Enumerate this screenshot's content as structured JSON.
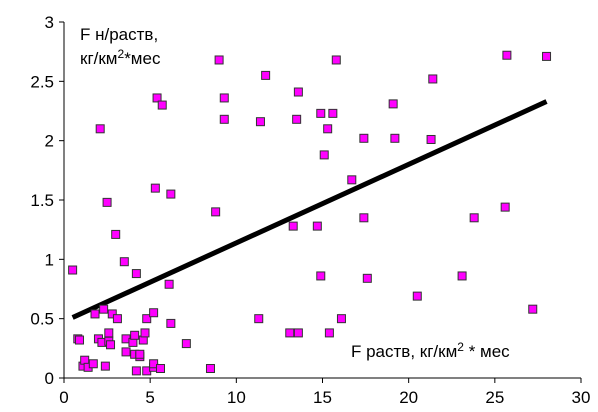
{
  "chart_data": {
    "type": "scatter",
    "title": "",
    "ylabel_line1": "F н/раств,",
    "ylabel_line2_prefix": "кг/км",
    "ylabel_line2_sup": "2",
    "ylabel_line2_suffix": "*мес",
    "xlabel_prefix": "F раств, кг/км",
    "xlabel_sup": "2",
    "xlabel_suffix": " * мес",
    "xlim": [
      0,
      30
    ],
    "ylim": [
      0,
      3
    ],
    "x_ticks": [
      "0",
      "5",
      "10",
      "15",
      "20",
      "25",
      "30"
    ],
    "y_ticks": [
      "0",
      "0.5",
      "1",
      "1.5",
      "2",
      "2.5",
      "3"
    ],
    "grid": false,
    "marker_color": "#ff00ff",
    "marker_edge": "#333333",
    "trendline": {
      "x": [
        0.5,
        28
      ],
      "y": [
        0.51,
        2.33
      ],
      "color": "#000000"
    },
    "points": [
      [
        0.5,
        0.91
      ],
      [
        0.8,
        0.33
      ],
      [
        0.9,
        0.32
      ],
      [
        1.1,
        0.1
      ],
      [
        1.2,
        0.15
      ],
      [
        1.4,
        0.09
      ],
      [
        1.7,
        0.12
      ],
      [
        1.8,
        0.54
      ],
      [
        2.0,
        0.33
      ],
      [
        2.1,
        2.1
      ],
      [
        2.2,
        0.3
      ],
      [
        2.3,
        0.58
      ],
      [
        2.4,
        0.1
      ],
      [
        2.5,
        1.48
      ],
      [
        2.6,
        0.38
      ],
      [
        2.6,
        0.31
      ],
      [
        2.7,
        0.28
      ],
      [
        2.8,
        0.54
      ],
      [
        3.0,
        1.21
      ],
      [
        3.1,
        0.5
      ],
      [
        3.5,
        0.98
      ],
      [
        3.6,
        0.22
      ],
      [
        3.6,
        0.33
      ],
      [
        4.0,
        0.3
      ],
      [
        4.1,
        0.2
      ],
      [
        4.1,
        0.36
      ],
      [
        4.2,
        0.88
      ],
      [
        4.2,
        0.06
      ],
      [
        4.4,
        0.18
      ],
      [
        4.4,
        0.2
      ],
      [
        4.6,
        0.32
      ],
      [
        4.7,
        0.38
      ],
      [
        4.8,
        0.06
      ],
      [
        4.8,
        0.5
      ],
      [
        5.2,
        0.55
      ],
      [
        5.2,
        0.09
      ],
      [
        5.2,
        0.12
      ],
      [
        5.3,
        1.6
      ],
      [
        5.4,
        2.36
      ],
      [
        5.6,
        0.08
      ],
      [
        5.7,
        2.3
      ],
      [
        6.1,
        0.79
      ],
      [
        6.2,
        1.55
      ],
      [
        6.2,
        0.46
      ],
      [
        7.1,
        0.29
      ],
      [
        8.5,
        0.08
      ],
      [
        8.8,
        1.4
      ],
      [
        9.0,
        2.68
      ],
      [
        9.3,
        2.36
      ],
      [
        9.3,
        2.18
      ],
      [
        11.3,
        0.5
      ],
      [
        11.4,
        2.16
      ],
      [
        11.7,
        2.55
      ],
      [
        13.1,
        0.38
      ],
      [
        13.3,
        1.28
      ],
      [
        13.5,
        2.18
      ],
      [
        13.6,
        2.41
      ],
      [
        13.6,
        0.38
      ],
      [
        14.7,
        1.28
      ],
      [
        14.9,
        0.86
      ],
      [
        14.9,
        2.23
      ],
      [
        15.1,
        1.88
      ],
      [
        15.3,
        2.1
      ],
      [
        15.4,
        0.38
      ],
      [
        15.6,
        2.23
      ],
      [
        15.8,
        2.68
      ],
      [
        16.1,
        0.5
      ],
      [
        16.7,
        1.67
      ],
      [
        17.4,
        2.02
      ],
      [
        17.4,
        1.35
      ],
      [
        17.6,
        0.84
      ],
      [
        19.1,
        2.31
      ],
      [
        19.2,
        2.02
      ],
      [
        20.5,
        0.69
      ],
      [
        21.3,
        2.01
      ],
      [
        21.4,
        2.52
      ],
      [
        23.1,
        0.86
      ],
      [
        23.8,
        1.35
      ],
      [
        25.6,
        1.44
      ],
      [
        25.7,
        2.72
      ],
      [
        27.2,
        0.58
      ],
      [
        28.0,
        2.71
      ]
    ]
  }
}
